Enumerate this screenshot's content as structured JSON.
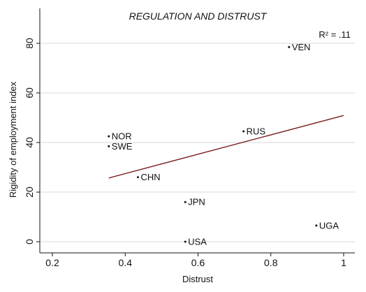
{
  "chart_data": {
    "type": "scatter",
    "title": "REGULATION AND DISTRUST",
    "xlabel": "Distrust",
    "ylabel": "Rigidity of employment index",
    "xlim": [
      0.2,
      1.0
    ],
    "ylim": [
      0,
      80
    ],
    "xticks": [
      "0.2",
      "0.4",
      "0.6",
      "0.8",
      "1"
    ],
    "yticks": [
      "0",
      "20",
      "40",
      "60",
      "80"
    ],
    "grid": "horizontal",
    "annotation": "R² = .11",
    "points": [
      {
        "label": "VEN",
        "x": 0.85,
        "y": 78.5
      },
      {
        "label": "NOR",
        "x": 0.355,
        "y": 42.5
      },
      {
        "label": "SWE",
        "x": 0.355,
        "y": 38.5
      },
      {
        "label": "RUS",
        "x": 0.725,
        "y": 44.5
      },
      {
        "label": "CHN",
        "x": 0.435,
        "y": 26
      },
      {
        "label": "JPN",
        "x": 0.565,
        "y": 16
      },
      {
        "label": "UGA",
        "x": 0.925,
        "y": 6.5
      },
      {
        "label": "USA",
        "x": 0.565,
        "y": 0
      }
    ],
    "fit_line": {
      "x": [
        0.355,
        1.0
      ],
      "y": [
        25.7,
        50.9
      ]
    },
    "colors": {
      "fit_line": "#7a1f1f",
      "points": "#111111",
      "grid": "#d9d9d9"
    }
  }
}
